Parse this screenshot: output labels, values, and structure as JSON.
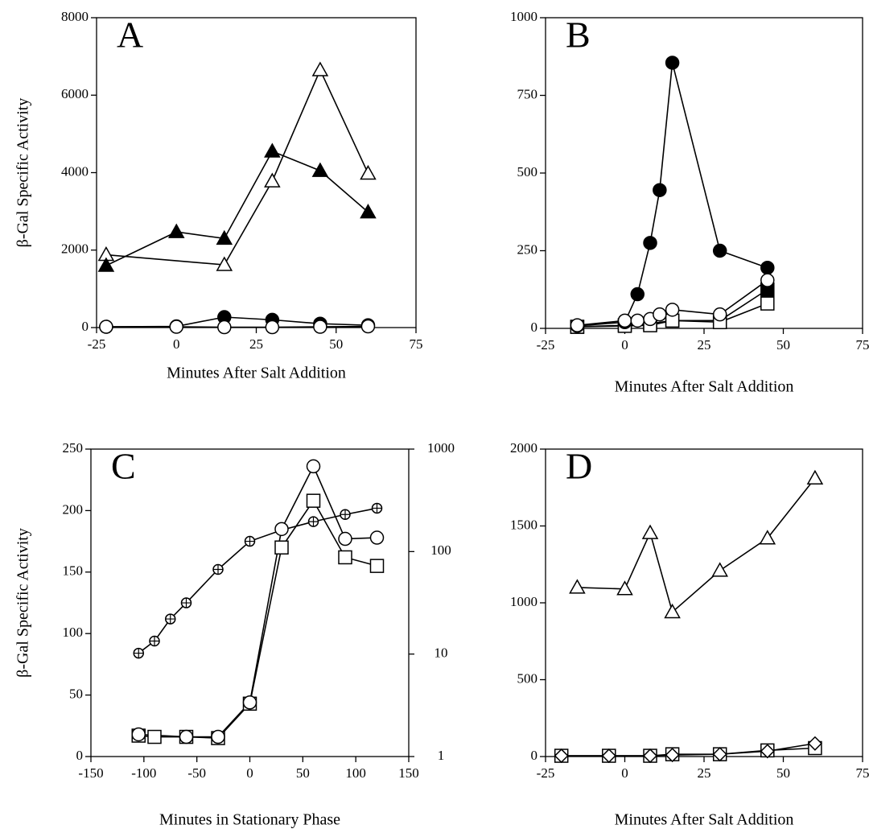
{
  "chart_data": [
    {
      "type": "line",
      "annotation": "A",
      "xlabel": "Minutes After Salt Addition",
      "ylabel": "β-Gal Specific Activity",
      "xlim": [
        -25,
        75
      ],
      "xticks": [
        -25,
        0,
        25,
        50,
        75
      ],
      "ylim": [
        0,
        8000
      ],
      "yticks": [
        0,
        2000,
        4000,
        6000,
        8000
      ],
      "series": [
        {
          "marker": "triangle",
          "color": "#000000",
          "fill": "#ffffff",
          "x": [
            -22,
            15,
            30,
            45,
            60
          ],
          "values": [
            1880,
            1620,
            3780,
            6650,
            3980
          ]
        },
        {
          "marker": "triangle",
          "color": "#000000",
          "fill": "#000000",
          "x": [
            -22,
            0,
            15,
            30,
            45,
            60
          ],
          "values": [
            1600,
            2470,
            2300,
            4550,
            4050,
            2980
          ]
        },
        {
          "marker": "circle",
          "color": "#000000",
          "fill": "#000000",
          "x": [
            -22,
            0,
            15,
            30,
            45,
            60
          ],
          "values": [
            20,
            30,
            270,
            200,
            100,
            60
          ]
        },
        {
          "marker": "circle",
          "color": "#000000",
          "fill": "#ffffff",
          "x": [
            -22,
            0,
            15,
            30,
            45,
            60
          ],
          "values": [
            20,
            20,
            10,
            10,
            20,
            30
          ]
        }
      ]
    },
    {
      "type": "line",
      "annotation": "B",
      "xlabel": "Minutes After Salt Addition",
      "xlim": [
        -25,
        75
      ],
      "xticks": [
        -25,
        0,
        25,
        50,
        75
      ],
      "ylim": [
        0,
        1000
      ],
      "yticks": [
        0,
        250,
        500,
        750,
        1000
      ],
      "series": [
        {
          "marker": "square",
          "color": "#000000",
          "fill": "#000000",
          "x": [
            -15,
            0,
            8,
            15,
            30,
            45
          ],
          "values": [
            5,
            10,
            15,
            25,
            25,
            125
          ]
        },
        {
          "marker": "square",
          "color": "#000000",
          "fill": "#ffffff",
          "x": [
            -15,
            0,
            8,
            15,
            30,
            45
          ],
          "values": [
            5,
            8,
            10,
            25,
            20,
            80
          ]
        },
        {
          "marker": "circle",
          "color": "#000000",
          "fill": "#000000",
          "x": [
            -15,
            0,
            4,
            8,
            11,
            15,
            30,
            45
          ],
          "values": [
            8,
            20,
            110,
            275,
            445,
            855,
            250,
            195
          ]
        },
        {
          "marker": "circle",
          "color": "#000000",
          "fill": "#ffffff",
          "x": [
            -15,
            0,
            4,
            8,
            11,
            15,
            30,
            45
          ],
          "values": [
            10,
            25,
            25,
            30,
            45,
            60,
            45,
            155
          ]
        }
      ]
    },
    {
      "type": "line",
      "annotation": "C",
      "xlabel": "Minutes in Stationary Phase",
      "ylabel": "β-Gal Specific Activity",
      "xlim": [
        -150,
        150
      ],
      "xticks": [
        -150,
        -100,
        -50,
        0,
        50,
        100,
        150
      ],
      "ylim": [
        0,
        250
      ],
      "yticks": [
        0,
        50,
        100,
        150,
        200,
        250
      ],
      "y2lim": [
        1,
        1000
      ],
      "y2ticks": [
        1,
        10,
        100,
        1000
      ],
      "y2scale": "log",
      "series": [
        {
          "marker": "crossed-circle",
          "color": "#000000",
          "fill": "#ffffff",
          "axis": "y2",
          "x": [
            -105,
            -90,
            -75,
            -60,
            -30,
            0,
            30,
            60,
            90,
            120
          ],
          "values": [
            10.2,
            13.4,
            22,
            31.6,
            67,
            126,
            162,
            196,
            230,
            265
          ]
        },
        {
          "marker": "square",
          "color": "#000000",
          "fill": "#ffffff",
          "x": [
            -105,
            -90,
            -60,
            -30,
            0,
            30,
            60,
            90,
            120
          ],
          "values": [
            17,
            16,
            16,
            15,
            43,
            170,
            208,
            162,
            155
          ]
        },
        {
          "marker": "circle",
          "color": "#000000",
          "fill": "#ffffff",
          "x": [
            -105,
            -60,
            -30,
            0,
            30,
            60,
            90,
            120
          ],
          "values": [
            18,
            16,
            16,
            44,
            185,
            236,
            177,
            178
          ]
        }
      ]
    },
    {
      "type": "line",
      "annotation": "D",
      "xlabel": "Minutes After Salt Addition",
      "xlim": [
        -25,
        75
      ],
      "xticks": [
        -25,
        0,
        25,
        50,
        75
      ],
      "ylim": [
        0,
        2000
      ],
      "yticks": [
        0,
        500,
        1000,
        1500,
        2000
      ],
      "series": [
        {
          "marker": "triangle",
          "color": "#000000",
          "fill": "#ffffff",
          "x": [
            -15,
            0,
            8,
            15,
            30,
            45,
            60
          ],
          "values": [
            1100,
            1090,
            1455,
            940,
            1210,
            1420,
            1810
          ]
        },
        {
          "marker": "square",
          "color": "#000000",
          "fill": "#ffffff",
          "x": [
            -20,
            -5,
            8,
            15,
            30,
            45,
            60
          ],
          "values": [
            5,
            5,
            5,
            15,
            15,
            40,
            55
          ]
        },
        {
          "marker": "diamond",
          "color": "#000000",
          "fill": "#ffffff",
          "x": [
            -20,
            -5,
            8,
            15,
            30,
            45,
            60
          ],
          "values": [
            5,
            5,
            5,
            10,
            15,
            35,
            85
          ]
        }
      ]
    }
  ]
}
